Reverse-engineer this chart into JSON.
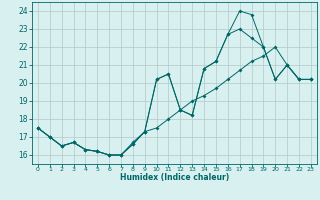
{
  "xlabel": "Humidex (Indice chaleur)",
  "bg_color": "#d8f0f0",
  "line_color": "#006666",
  "grid_color": "#b0c8c8",
  "xlim": [
    -0.5,
    23.5
  ],
  "ylim": [
    15.5,
    24.5
  ],
  "xticks": [
    0,
    1,
    2,
    3,
    4,
    5,
    6,
    7,
    8,
    9,
    10,
    11,
    12,
    13,
    14,
    15,
    16,
    17,
    18,
    19,
    20,
    21,
    22,
    23
  ],
  "yticks": [
    16,
    17,
    18,
    19,
    20,
    21,
    22,
    23,
    24
  ],
  "curve1_x": [
    0,
    1,
    2,
    3,
    4,
    5,
    6,
    7,
    8,
    9,
    10,
    11,
    12,
    13,
    14,
    15,
    16,
    17,
    18,
    19,
    20,
    21,
    22,
    23
  ],
  "curve1_y": [
    17.5,
    17.0,
    16.5,
    16.7,
    16.3,
    16.2,
    16.0,
    16.0,
    16.6,
    17.3,
    20.2,
    20.5,
    18.5,
    18.2,
    20.8,
    21.2,
    22.7,
    23.0,
    22.5,
    22.0,
    20.2,
    21.0,
    20.2,
    20.2
  ],
  "curve2_x": [
    0,
    1,
    2,
    3,
    4,
    5,
    6,
    7,
    8,
    9,
    10,
    11,
    12,
    13,
    14,
    15,
    16,
    17,
    18,
    19,
    20,
    21,
    22,
    23
  ],
  "curve2_y": [
    17.5,
    17.0,
    16.5,
    16.7,
    16.3,
    16.2,
    16.0,
    16.0,
    16.6,
    17.3,
    17.5,
    18.0,
    18.5,
    19.0,
    19.3,
    19.7,
    20.2,
    20.7,
    21.2,
    21.5,
    22.0,
    21.0,
    20.2,
    20.2
  ],
  "curve3_x": [
    0,
    1,
    2,
    3,
    4,
    5,
    6,
    7,
    8,
    9,
    10,
    11,
    12,
    13,
    14,
    15,
    16,
    17,
    18,
    19,
    20,
    21,
    22,
    23
  ],
  "curve3_y": [
    17.5,
    17.0,
    16.5,
    16.7,
    16.3,
    16.2,
    16.0,
    16.0,
    16.7,
    17.3,
    20.2,
    20.5,
    18.5,
    18.2,
    20.8,
    21.2,
    22.7,
    24.0,
    23.8,
    22.0,
    20.2,
    21.0,
    20.2,
    20.2
  ]
}
